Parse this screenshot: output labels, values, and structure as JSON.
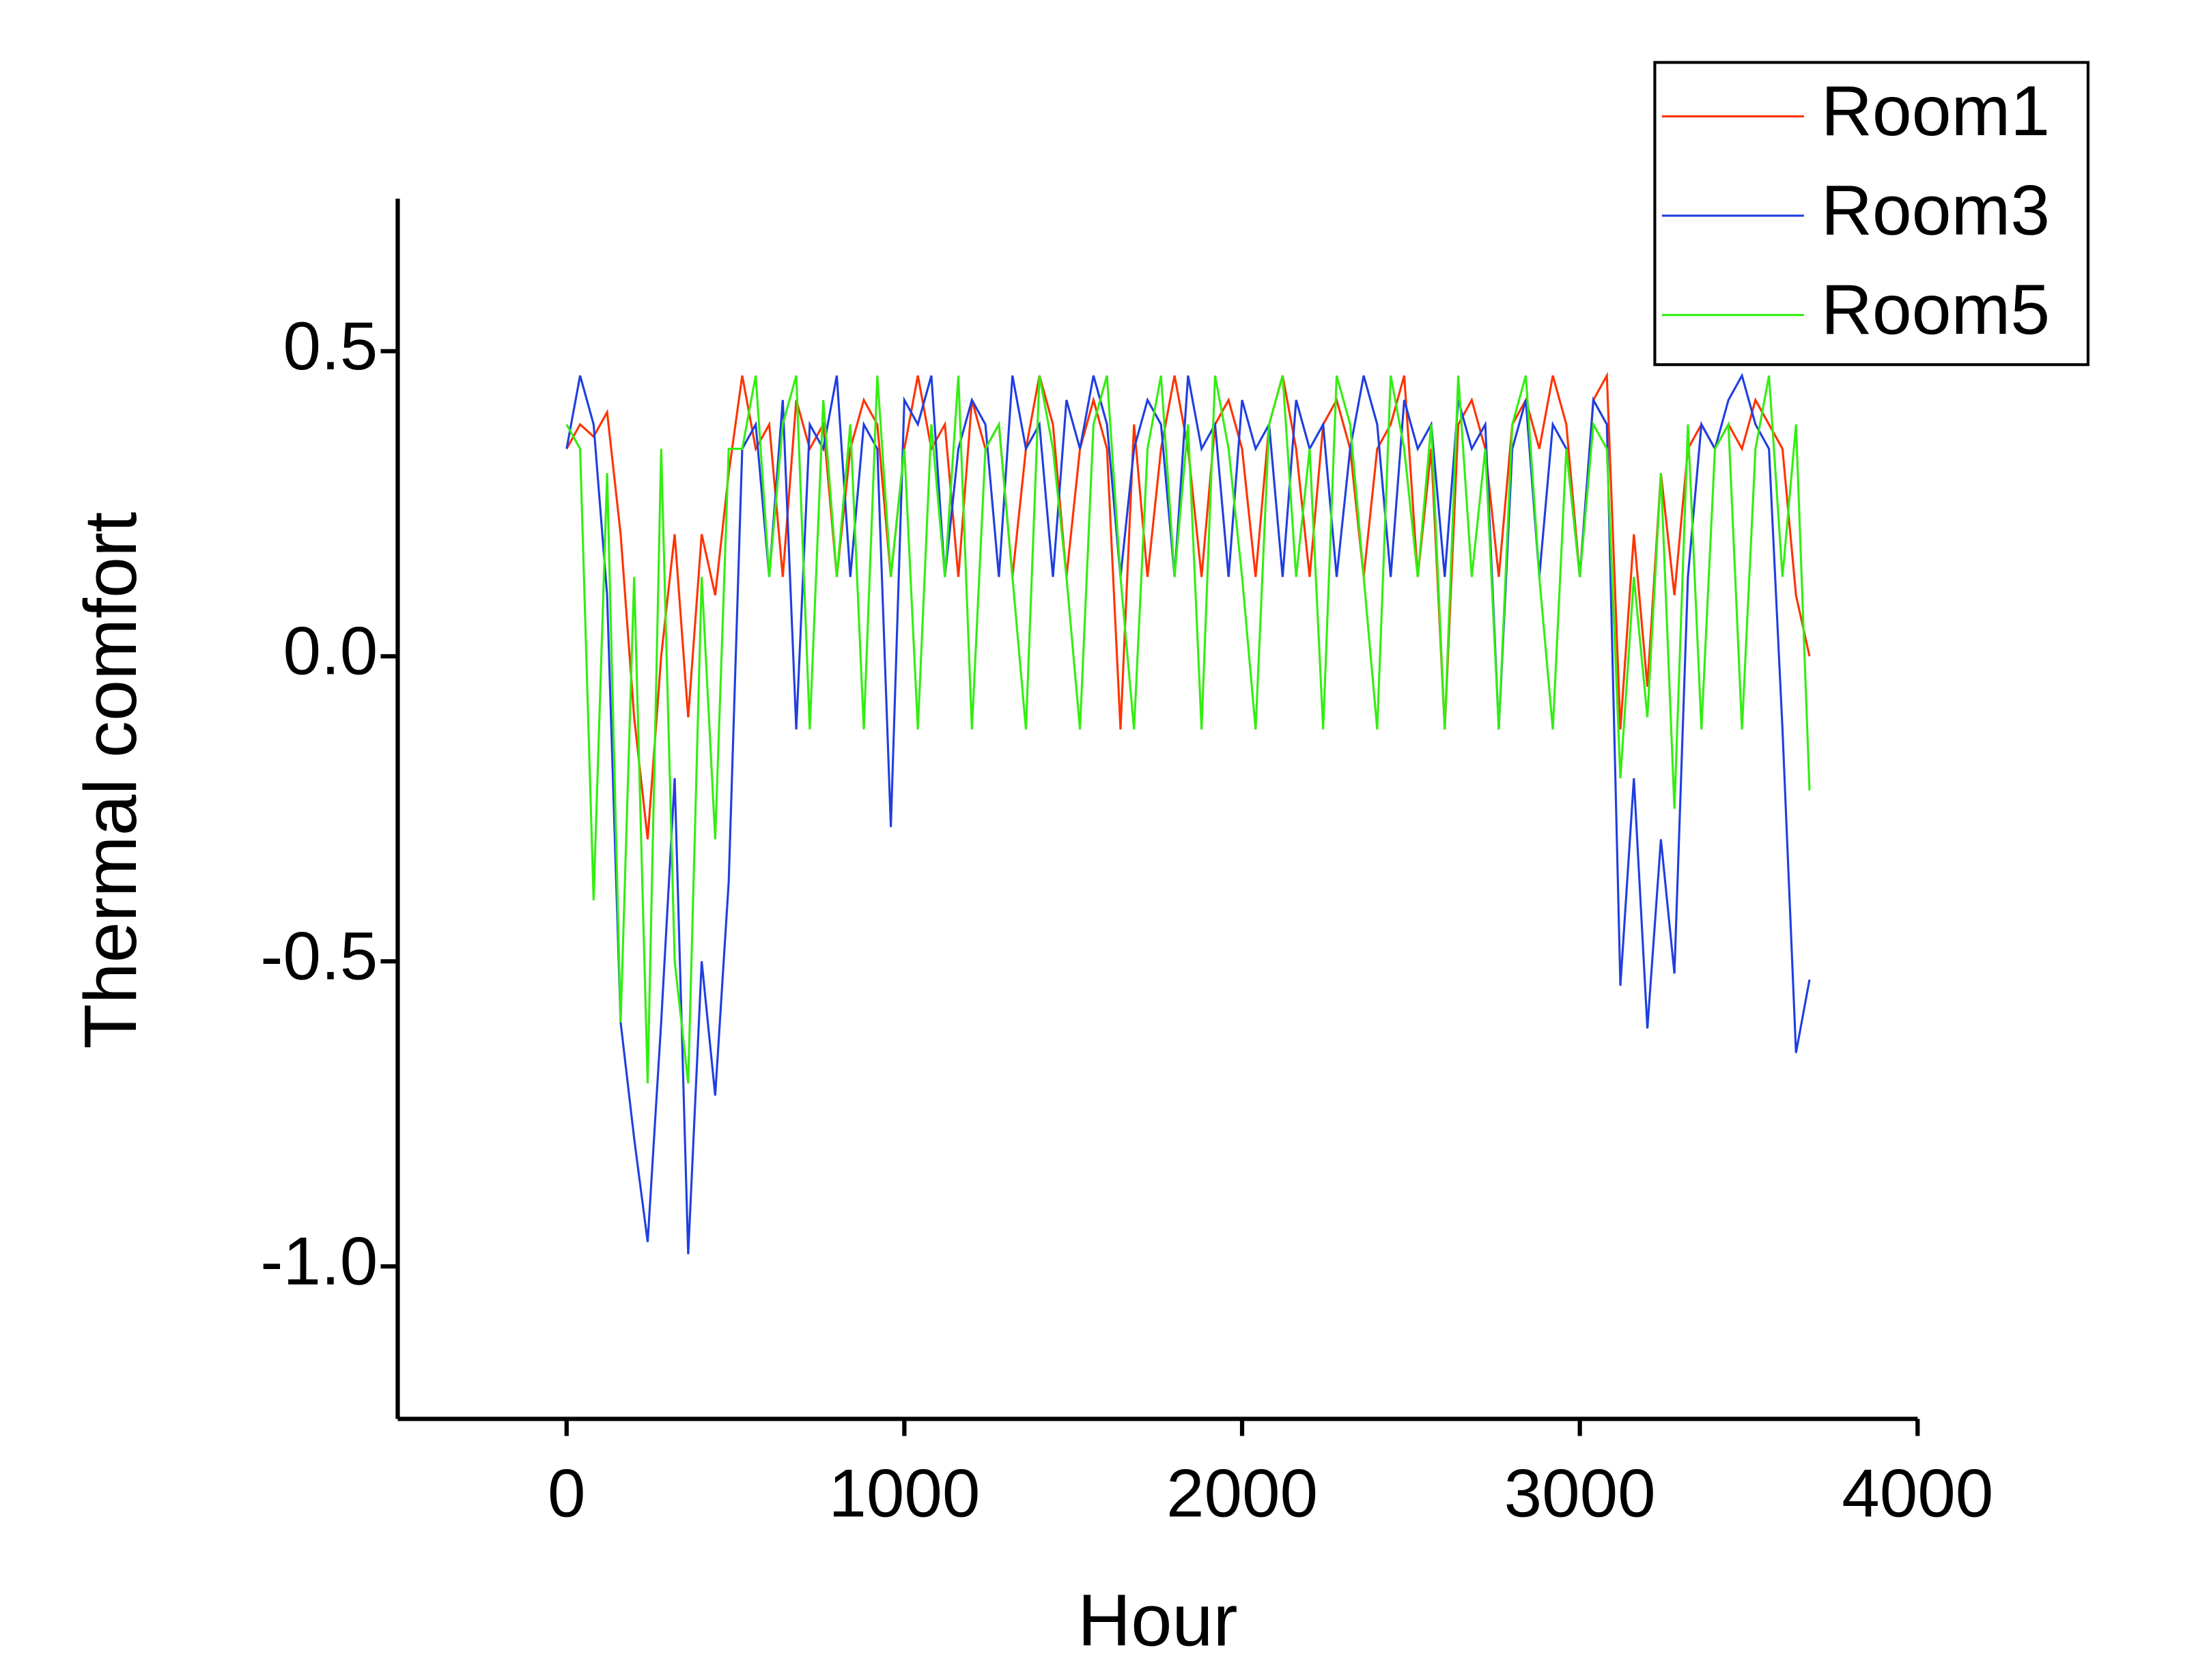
{
  "chart_data": {
    "type": "line",
    "x_label": "Hour",
    "y_label": "Thermal comfort",
    "x": [
      0,
      40,
      80,
      120,
      160,
      200,
      240,
      280,
      320,
      360,
      400,
      440,
      480,
      520,
      560,
      600,
      640,
      680,
      720,
      760,
      800,
      840,
      880,
      920,
      960,
      1000,
      1040,
      1080,
      1120,
      1160,
      1200,
      1240,
      1280,
      1320,
      1360,
      1400,
      1440,
      1480,
      1520,
      1560,
      1600,
      1640,
      1680,
      1720,
      1760,
      1800,
      1840,
      1880,
      1920,
      1960,
      2000,
      2040,
      2080,
      2120,
      2160,
      2200,
      2240,
      2280,
      2320,
      2360,
      2400,
      2440,
      2480,
      2520,
      2560,
      2600,
      2640,
      2680,
      2720,
      2760,
      2800,
      2840,
      2880,
      2920,
      2960,
      3000,
      3040,
      3080,
      3120,
      3160,
      3200,
      3240,
      3280,
      3320,
      3360,
      3400,
      3440,
      3480,
      3520,
      3560,
      3600,
      3640,
      3680
    ],
    "series": [
      {
        "name": "Room1",
        "color": "#ff3300",
        "values": [
          0.34,
          0.38,
          0.36,
          0.4,
          0.2,
          -0.1,
          -0.3,
          0.0,
          0.2,
          -0.1,
          0.2,
          0.1,
          0.3,
          0.46,
          0.34,
          0.38,
          0.13,
          0.42,
          0.34,
          0.38,
          0.13,
          0.34,
          0.42,
          0.38,
          0.13,
          0.34,
          0.46,
          0.34,
          0.38,
          0.13,
          0.42,
          0.34,
          0.38,
          0.13,
          0.34,
          0.46,
          0.38,
          0.13,
          0.34,
          0.42,
          0.34,
          -0.12,
          0.38,
          0.13,
          0.34,
          0.46,
          0.34,
          0.13,
          0.38,
          0.42,
          0.34,
          0.13,
          0.38,
          0.46,
          0.34,
          0.13,
          0.38,
          0.42,
          0.34,
          0.13,
          0.34,
          0.38,
          0.46,
          0.13,
          0.34,
          -0.12,
          0.38,
          0.42,
          0.34,
          0.13,
          0.38,
          0.42,
          0.34,
          0.46,
          0.38,
          0.13,
          0.42,
          0.46,
          -0.12,
          0.2,
          -0.05,
          0.3,
          0.1,
          0.34,
          0.38,
          0.34,
          0.38,
          0.34,
          0.42,
          0.38,
          0.34,
          0.1,
          0.0
        ]
      },
      {
        "name": "Room3",
        "color": "#1f3fe0",
        "values": [
          0.34,
          0.46,
          0.38,
          0.1,
          -0.6,
          -0.79,
          -0.96,
          -0.6,
          -0.2,
          -0.98,
          -0.5,
          -0.72,
          -0.37,
          0.34,
          0.38,
          0.13,
          0.42,
          -0.12,
          0.38,
          0.34,
          0.46,
          0.13,
          0.38,
          0.34,
          -0.28,
          0.42,
          0.38,
          0.46,
          0.13,
          0.34,
          0.42,
          0.38,
          0.13,
          0.46,
          0.34,
          0.38,
          0.13,
          0.42,
          0.34,
          0.46,
          0.38,
          0.13,
          0.34,
          0.42,
          0.38,
          0.13,
          0.46,
          0.34,
          0.38,
          0.13,
          0.42,
          0.34,
          0.38,
          0.13,
          0.42,
          0.34,
          0.38,
          0.13,
          0.34,
          0.46,
          0.38,
          0.13,
          0.42,
          0.34,
          0.38,
          0.13,
          0.42,
          0.34,
          0.38,
          -0.12,
          0.34,
          0.42,
          0.13,
          0.38,
          0.34,
          0.13,
          0.42,
          0.38,
          -0.54,
          -0.2,
          -0.61,
          -0.3,
          -0.52,
          0.13,
          0.38,
          0.34,
          0.42,
          0.46,
          0.38,
          0.34,
          -0.12,
          -0.65,
          -0.53
        ]
      },
      {
        "name": "Room5",
        "color": "#33ee11",
        "values": [
          0.38,
          0.34,
          -0.4,
          0.3,
          -0.6,
          0.13,
          -0.7,
          0.34,
          -0.5,
          -0.7,
          0.13,
          -0.3,
          0.34,
          0.34,
          0.46,
          0.13,
          0.38,
          0.46,
          -0.12,
          0.42,
          0.13,
          0.38,
          -0.12,
          0.46,
          0.13,
          0.34,
          -0.12,
          0.38,
          0.13,
          0.46,
          -0.12,
          0.34,
          0.38,
          0.13,
          -0.12,
          0.46,
          0.34,
          0.13,
          -0.12,
          0.38,
          0.46,
          0.13,
          -0.12,
          0.34,
          0.46,
          0.13,
          0.38,
          -0.12,
          0.46,
          0.34,
          0.13,
          -0.12,
          0.38,
          0.46,
          0.13,
          0.34,
          -0.12,
          0.46,
          0.38,
          0.13,
          -0.12,
          0.46,
          0.34,
          0.13,
          0.38,
          -0.12,
          0.46,
          0.13,
          0.34,
          -0.12,
          0.38,
          0.46,
          0.13,
          -0.12,
          0.34,
          0.13,
          0.38,
          0.34,
          -0.2,
          0.13,
          -0.1,
          0.3,
          -0.25,
          0.38,
          -0.12,
          0.34,
          0.38,
          -0.12,
          0.34,
          0.46,
          0.13,
          0.38,
          -0.22
        ]
      }
    ],
    "xlim": [
      -500,
      4000
    ],
    "xticks": [
      0,
      1000,
      2000,
      3000,
      4000
    ],
    "ylim": [
      -1.25,
      0.75
    ],
    "yticks": [
      0.5,
      {
        "value": 0,
        "label": "0.0"
      },
      -0.5,
      {
        "value": -1,
        "label": "-1.0"
      }
    ],
    "legend": "upper right",
    "grid": false
  }
}
